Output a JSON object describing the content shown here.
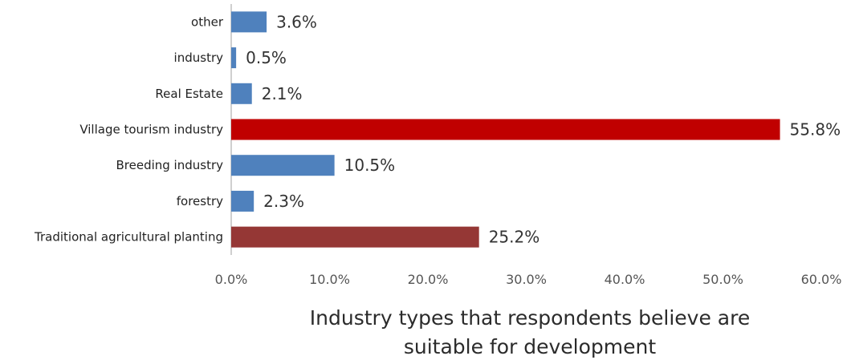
{
  "chart_data": {
    "type": "bar",
    "orientation": "horizontal",
    "categories": [
      "other",
      "industry",
      "Real Estate",
      "Village tourism industry",
      "Breeding industry",
      "forestry",
      "Traditional agricultural planting"
    ],
    "values": [
      3.6,
      0.5,
      2.1,
      55.8,
      10.5,
      2.3,
      25.2
    ],
    "value_labels": [
      "3.6%",
      "0.5%",
      "2.1%",
      "55.8%",
      "10.5%",
      "2.3%",
      "25.2%"
    ],
    "bar_colors": [
      "#4f81bd",
      "#4f81bd",
      "#4f81bd",
      "#c00000",
      "#4f81bd",
      "#4f81bd",
      "#953735"
    ],
    "xlim": [
      0,
      60
    ],
    "x_ticks": [
      "0.0%",
      "10.0%",
      "20.0%",
      "30.0%",
      "40.0%",
      "50.0%",
      "60.0%"
    ],
    "xlabel_lines": [
      "Industry types that respondents believe are",
      "suitable for development"
    ],
    "grid": false,
    "legend": "none"
  }
}
